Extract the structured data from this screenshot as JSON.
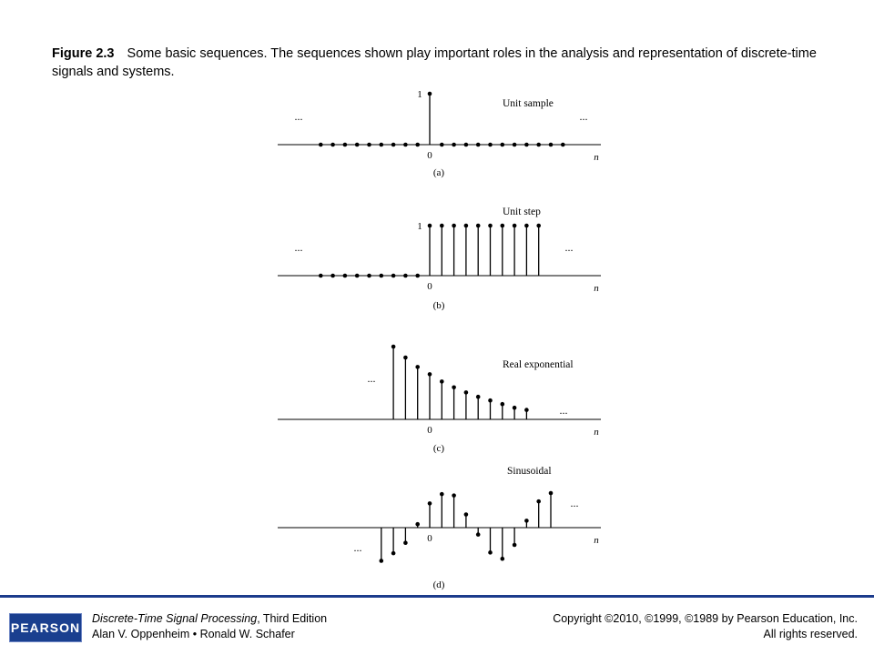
{
  "caption": {
    "label": "Figure 2.3",
    "text": "Some basic sequences. The sequences shown play important roles in the analysis and representation of discrete-time signals and systems."
  },
  "chart_data": [
    {
      "type": "stem",
      "panel_label": "(a)",
      "title": "Unit sample",
      "xlabel": "n",
      "x": [
        -9,
        -8,
        -7,
        -6,
        -5,
        -4,
        -3,
        -2,
        -1,
        0,
        1,
        2,
        3,
        4,
        5,
        6,
        7,
        8,
        9,
        10,
        11
      ],
      "y": [
        0,
        0,
        0,
        0,
        0,
        0,
        0,
        0,
        0,
        1,
        0,
        0,
        0,
        0,
        0,
        0,
        0,
        0,
        0,
        0,
        0
      ],
      "tick_labels": {
        "x0": "0",
        "y1": "1"
      },
      "ellipsis": "..."
    },
    {
      "type": "stem",
      "panel_label": "(b)",
      "title": "Unit step",
      "xlabel": "n",
      "x": [
        -9,
        -8,
        -7,
        -6,
        -5,
        -4,
        -3,
        -2,
        -1,
        0,
        1,
        2,
        3,
        4,
        5,
        6,
        7,
        8,
        9
      ],
      "y": [
        0,
        0,
        0,
        0,
        0,
        0,
        0,
        0,
        0,
        1,
        1,
        1,
        1,
        1,
        1,
        1,
        1,
        1,
        1
      ],
      "tick_labels": {
        "x0": "0",
        "y1": "1"
      },
      "ellipsis": "..."
    },
    {
      "type": "stem",
      "panel_label": "(c)",
      "title": "Real exponential",
      "xlabel": "n",
      "x": [
        -3,
        -2,
        -1,
        0,
        1,
        2,
        3,
        4,
        5,
        6,
        7,
        8
      ],
      "y": [
        1.0,
        0.85,
        0.72,
        0.62,
        0.52,
        0.44,
        0.37,
        0.31,
        0.26,
        0.21,
        0.16,
        0.13
      ],
      "tick_labels": {
        "x0": "0"
      },
      "ellipsis": "..."
    },
    {
      "type": "stem",
      "panel_label": "(d)",
      "title": "Sinusoidal",
      "xlabel": "n",
      "x": [
        -4,
        -3,
        -2,
        -1,
        0,
        1,
        2,
        3,
        4,
        5,
        6,
        7,
        8,
        9,
        10
      ],
      "y": [
        -0.96,
        -0.74,
        -0.44,
        0.1,
        0.7,
        0.97,
        0.93,
        0.38,
        -0.2,
        -0.72,
        -0.9,
        -0.5,
        0.2,
        0.76,
        1.0
      ],
      "tick_labels": {
        "x0": "0"
      },
      "ellipsis": "..."
    }
  ],
  "footer": {
    "logo_text": "PEARSON",
    "book_title": "Discrete-Time Signal Processing",
    "edition": ", Third Edition",
    "authors": "Alan V. Oppenheim • Ronald W. Schafer",
    "copyright": "Copyright ©2010, ©1999, ©1989 by Pearson Education, Inc.",
    "rights": "All rights reserved.",
    "rule_color": "#1c3b8c",
    "logo_color": "#1a3f8f"
  }
}
